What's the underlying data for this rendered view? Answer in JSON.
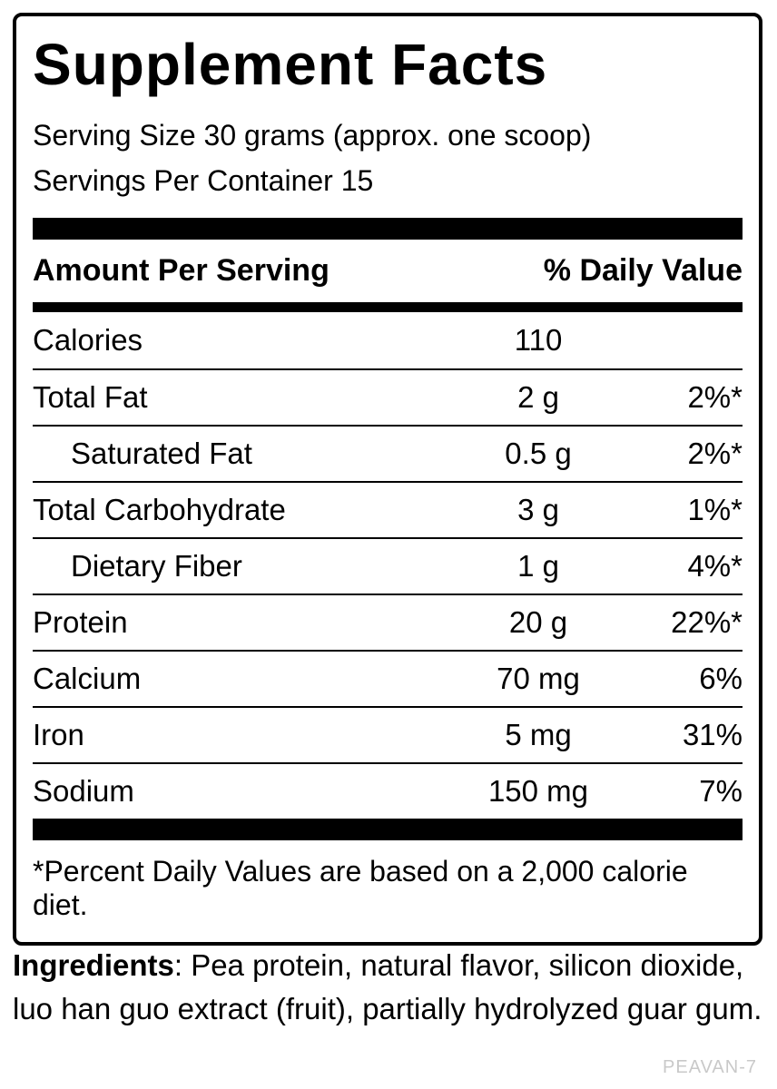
{
  "label": {
    "title": "Supplement Facts",
    "serving_size": "Serving Size 30 grams (approx. one scoop)",
    "servings_per_container": "Servings Per Container 15",
    "header": {
      "amount_col": "Amount Per Serving",
      "dv_col": "% Daily Value"
    },
    "rows": [
      {
        "name": "Calories",
        "amount": "110",
        "dv": "",
        "indent": false
      },
      {
        "name": "Total Fat",
        "amount": "2 g",
        "dv": "2%*",
        "indent": false
      },
      {
        "name": "Saturated Fat",
        "amount": "0.5 g",
        "dv": "2%*",
        "indent": true
      },
      {
        "name": "Total Carbohydrate",
        "amount": "3 g",
        "dv": "1%*",
        "indent": false
      },
      {
        "name": "Dietary Fiber",
        "amount": "1 g",
        "dv": "4%*",
        "indent": true
      },
      {
        "name": "Protein",
        "amount": "20 g",
        "dv": "22%*",
        "indent": false
      },
      {
        "name": "Calcium",
        "amount": "70 mg",
        "dv": "6%",
        "indent": false
      },
      {
        "name": "Iron",
        "amount": "5 mg",
        "dv": "31%",
        "indent": false
      },
      {
        "name": "Sodium",
        "amount": "150 mg",
        "dv": "7%",
        "indent": false
      }
    ],
    "footnote": "*Percent Daily Values are based on a 2,000 calorie diet."
  },
  "ingredients": {
    "bold_label": "Ingredients",
    "text": ": Pea protein, natural flavor, silicon dioxide, luo han guo extract (fruit), partially hydrolyzed guar gum."
  },
  "watermark": "PEAVAN-7",
  "colors": {
    "bar": "#000000",
    "border": "#000000",
    "watermark_gray": "#c9c9c9",
    "background": "#ffffff"
  }
}
